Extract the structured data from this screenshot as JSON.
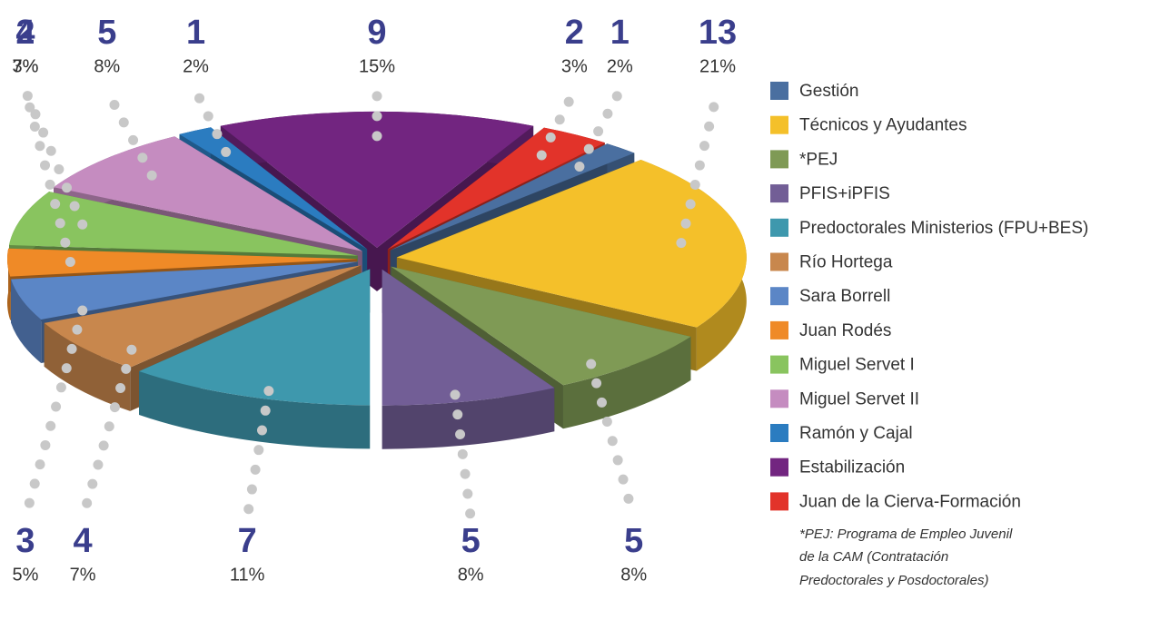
{
  "chart_data": {
    "type": "pie",
    "categories": [
      "Gestión",
      "Técnicos y Ayudantes",
      "*PEJ",
      "PFIS+iPFIS",
      "Predoctorales Ministerios (FPU+BES)",
      "Río Hortega",
      "Sara Borrell",
      "Juan Rodés",
      "Miguel Servet I",
      "Miguel Servet II",
      "Ramón y Cajal",
      "Estabilización",
      "Juan de la Cierva-Formación"
    ],
    "values": [
      1,
      13,
      5,
      5,
      7,
      4,
      3,
      2,
      4,
      5,
      1,
      9,
      2
    ],
    "percentage_labels": [
      "2%",
      "21%",
      "8%",
      "8%",
      "11%",
      "7%",
      "5%",
      "3%",
      "7%",
      "8%",
      "2%",
      "15%",
      "3%"
    ],
    "colors": [
      "#4a6fa0",
      "#f4c02a",
      "#7f9a55",
      "#725e96",
      "#3e98ad",
      "#c8874d",
      "#5b86c6",
      "#ef8a27",
      "#89c45f",
      "#c58cc0",
      "#2b7cc0",
      "#722580",
      "#e2332a"
    ],
    "note": [
      "*PEJ: Programa de Empleo Juvenil",
      "de la CAM (Contratación",
      "Predoctorales y Posdoctorales)"
    ]
  }
}
